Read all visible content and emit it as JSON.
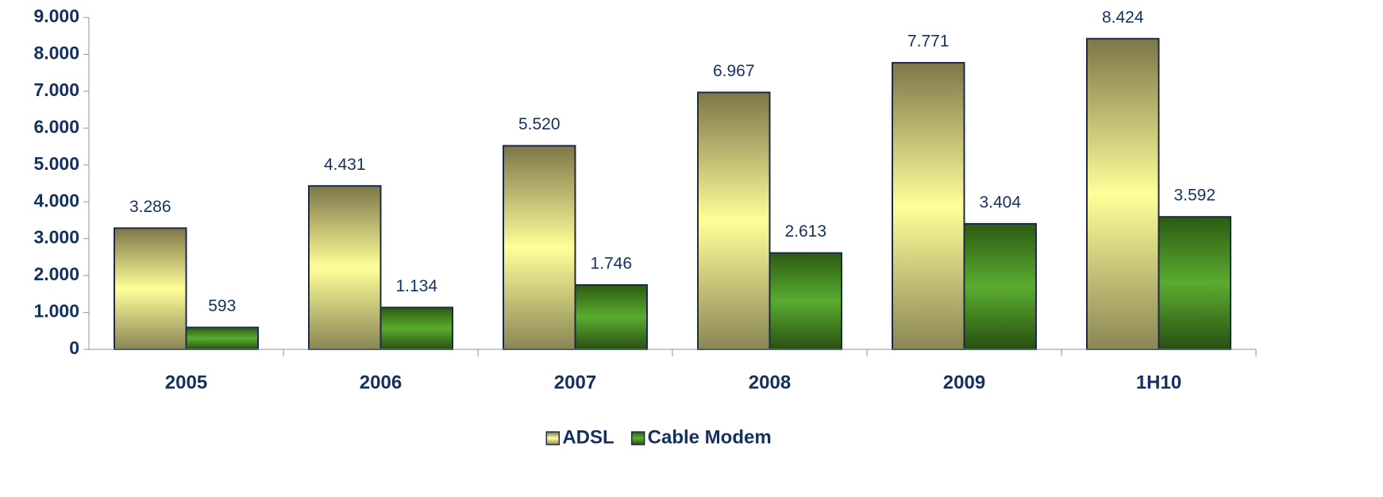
{
  "chart_data": {
    "type": "bar",
    "categories": [
      "2005",
      "2006",
      "2007",
      "2008",
      "2009",
      "1H10"
    ],
    "series": [
      {
        "name": "ADSL",
        "color": "#ffff99",
        "gradient_colors": [
          "#7d7649",
          "#ffff99",
          "#8a8656"
        ],
        "values": [
          3286,
          4431,
          5520,
          6967,
          7771,
          8424
        ],
        "value_labels": [
          "3.286",
          "4.431",
          "5.520",
          "6.967",
          "7.771",
          "8.424"
        ]
      },
      {
        "name": "Cable Modem",
        "color": "#4e9a2a",
        "gradient_colors": [
          "#2c5a12",
          "#5aac30",
          "#2a4f12"
        ],
        "values": [
          593,
          1134,
          1746,
          2613,
          3404,
          3592
        ],
        "value_labels": [
          "593",
          "1.134",
          "1.746",
          "2.613",
          "3.404",
          "3.592"
        ]
      }
    ],
    "ylim": [
      0,
      9000
    ],
    "yticks": [
      0,
      {
        "value": 1000,
        "label": "1.000"
      },
      {
        "value": 2000,
        "label": "2.000"
      },
      {
        "value": 3000,
        "label": "3.000"
      },
      {
        "value": 4000,
        "label": "4.000"
      },
      {
        "value": 5000,
        "label": "5.000"
      },
      {
        "value": 6000,
        "label": "6.000"
      },
      {
        "value": 7000,
        "label": "7.000"
      },
      {
        "value": 8000,
        "label": "8.000"
      },
      {
        "value": 9000,
        "label": "9.000"
      }
    ],
    "legend": "bottom"
  }
}
